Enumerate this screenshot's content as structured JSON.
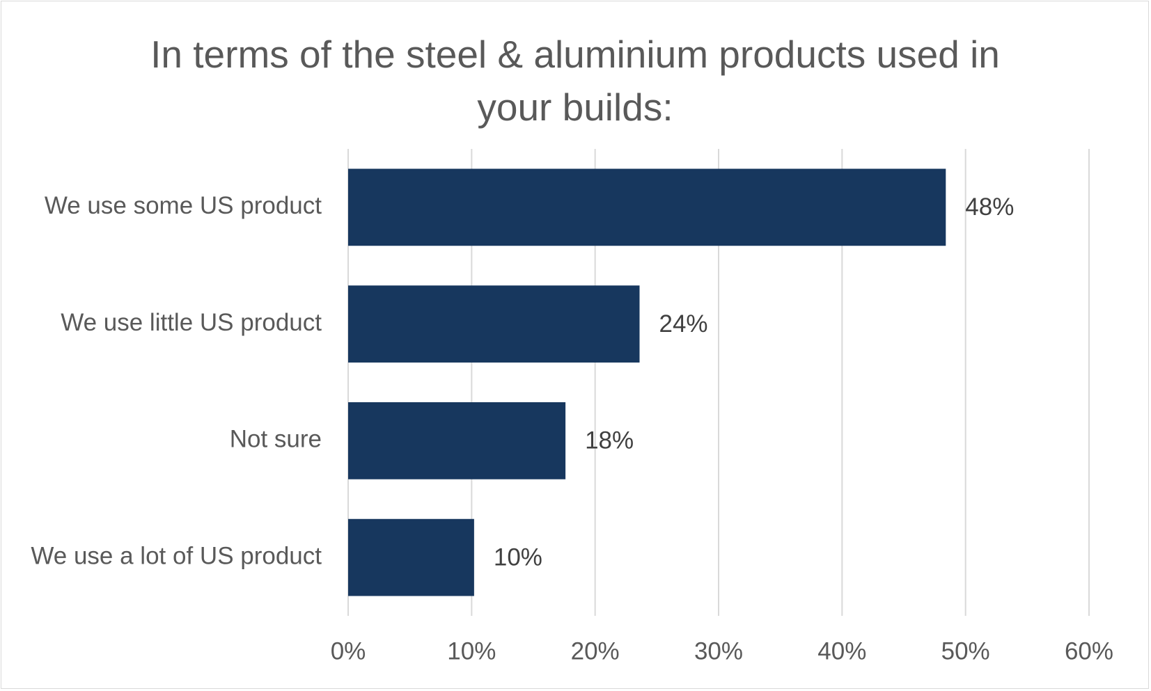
{
  "chart_data": {
    "type": "bar",
    "orientation": "horizontal",
    "title": "In terms of the steel & aluminium products used in your builds:",
    "categories": [
      "We use some US product",
      "We use little US product",
      "Not sure",
      "We use a lot of US product"
    ],
    "values": [
      48.4,
      23.6,
      17.6,
      10.2
    ],
    "value_labels": [
      "48%",
      "24%",
      "18%",
      "10%"
    ],
    "color": "#17375e",
    "xlim": [
      0,
      60
    ],
    "xticks": [
      {
        "value": 0,
        "label": "0%"
      },
      {
        "value": 10,
        "label": "10%"
      },
      {
        "value": 20,
        "label": "20%"
      },
      {
        "value": 30,
        "label": "30%"
      },
      {
        "value": 40,
        "label": "40%"
      },
      {
        "value": 50,
        "label": "50%"
      },
      {
        "value": 60,
        "label": "60%"
      }
    ],
    "grid": true
  }
}
